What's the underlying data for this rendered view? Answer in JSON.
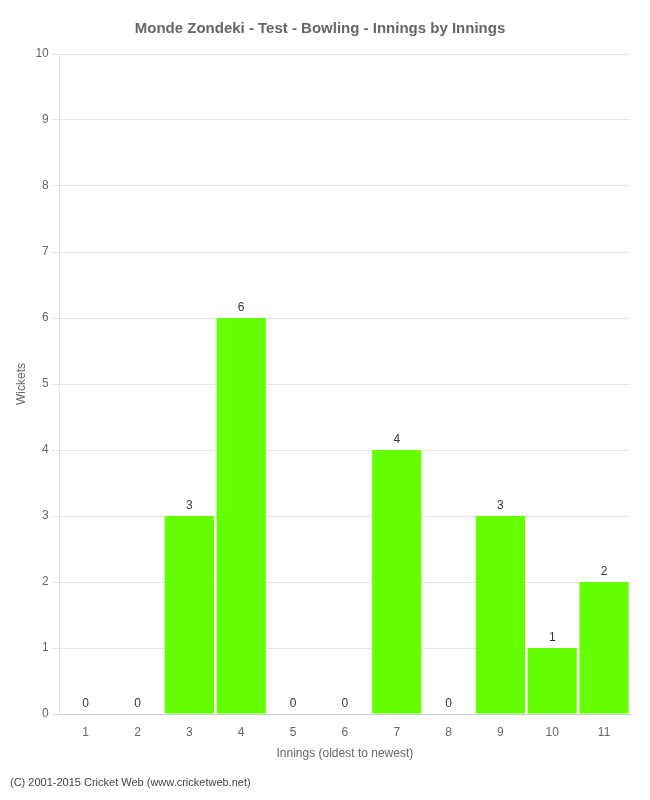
{
  "chart_data": {
    "type": "bar",
    "title": "Monde Zondeki - Test - Bowling - Innings by Innings",
    "x_label": "Innings (oldest to newest)",
    "y_label": "Wickets",
    "categories": [
      "1",
      "2",
      "3",
      "4",
      "5",
      "6",
      "7",
      "8",
      "9",
      "10",
      "11"
    ],
    "values": [
      0,
      0,
      3,
      6,
      0,
      0,
      4,
      0,
      3,
      1,
      2
    ],
    "color": "#66ff00",
    "ylim": [
      0,
      10
    ],
    "yticks": [
      0,
      1,
      2,
      3,
      4,
      5,
      6,
      7,
      8,
      9,
      10
    ],
    "grid": true,
    "data_labels": true,
    "annotations": [
      "(C) 2001-2015 Cricket Web (www.cricketweb.net)"
    ]
  }
}
